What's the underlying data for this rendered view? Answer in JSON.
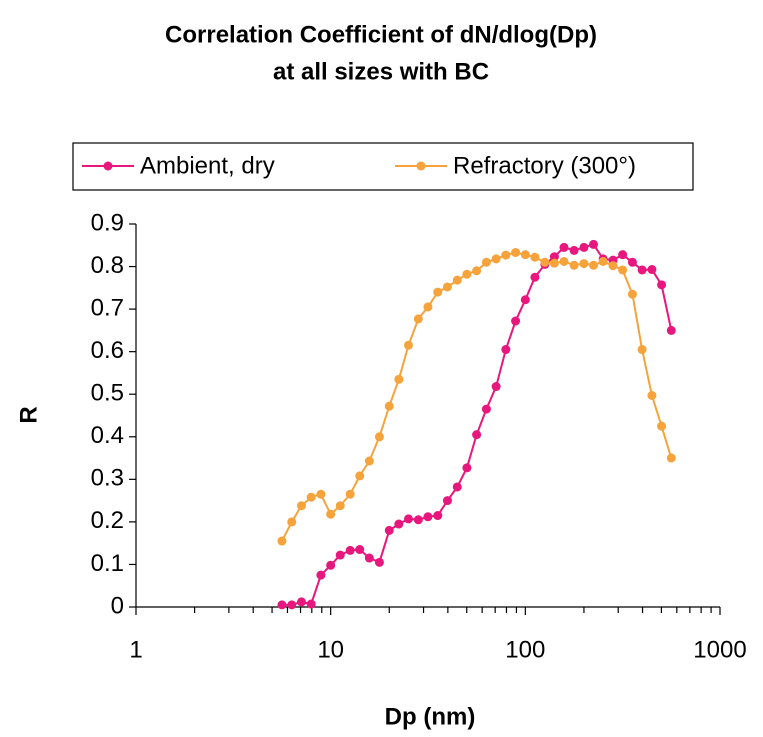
{
  "chart_data": {
    "type": "line",
    "title": [
      "Correlation Coefficient of dN/dlog(Dp)",
      "at all sizes with BC"
    ],
    "x_label": "Dp (nm)",
    "y_label": "R",
    "log_x": true,
    "legend": "top",
    "x": [
      5.62,
      6.31,
      7.08,
      7.94,
      8.91,
      10,
      11.2,
      12.6,
      14.1,
      15.8,
      17.8,
      20,
      22.4,
      25.1,
      28.2,
      31.6,
      35.5,
      39.8,
      44.7,
      50.1,
      56.2,
      63.1,
      70.8,
      79.4,
      89.1,
      100,
      112,
      126,
      141,
      158,
      178,
      200,
      224,
      251,
      282,
      316,
      355,
      398,
      447,
      501,
      562
    ],
    "series": [
      {
        "name": "Ambient, dry",
        "color": "#e8177d",
        "values": [
          0.005,
          0.005,
          0.012,
          0.007,
          0.075,
          0.098,
          0.122,
          0.133,
          0.135,
          0.115,
          0.105,
          0.18,
          0.195,
          0.207,
          0.205,
          0.212,
          0.215,
          0.25,
          0.282,
          0.327,
          0.405,
          0.465,
          0.518,
          0.605,
          0.672,
          0.722,
          0.775,
          0.805,
          0.823,
          0.845,
          0.838,
          0.845,
          0.852,
          0.818,
          0.815,
          0.828,
          0.81,
          0.792,
          0.793,
          0.757,
          0.65
        ]
      },
      {
        "name": "Refractory (300°)",
        "color": "#f7a33c",
        "values": [
          0.155,
          0.2,
          0.238,
          0.258,
          0.265,
          0.218,
          0.238,
          0.265,
          0.308,
          0.343,
          0.4,
          0.472,
          0.535,
          0.615,
          0.677,
          0.705,
          0.74,
          0.752,
          0.768,
          0.782,
          0.79,
          0.81,
          0.818,
          0.827,
          0.833,
          0.828,
          0.822,
          0.81,
          0.808,
          0.812,
          0.803,
          0.807,
          0.803,
          0.812,
          0.802,
          0.792,
          0.735,
          0.605,
          0.497,
          0.425,
          0.35
        ]
      }
    ],
    "xlim": [
      1,
      1000
    ],
    "xticks": [
      1,
      10,
      100,
      1000
    ],
    "ylim": [
      0,
      0.9
    ],
    "yticks": [
      0,
      0.1,
      0.2,
      0.3,
      0.4,
      0.5,
      0.6,
      0.7,
      0.8,
      0.9
    ]
  }
}
